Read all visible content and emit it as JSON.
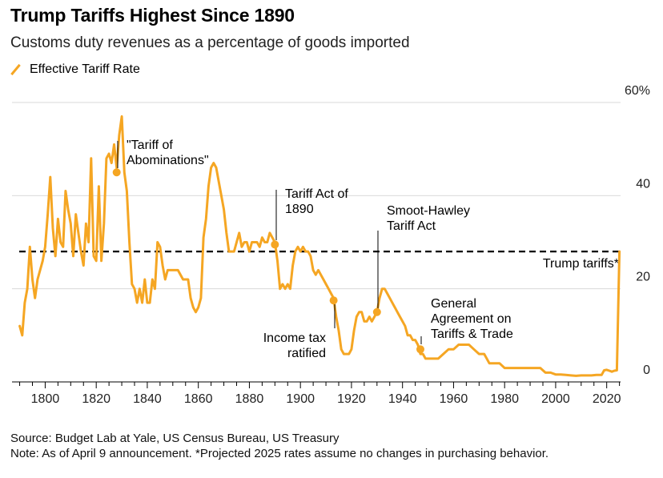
{
  "chart_data": {
    "type": "line",
    "title": "Trump Tariffs Highest Since 1890",
    "subtitle": "Customs duty revenues as a percentage of goods imported",
    "series": [
      {
        "name": "Effective Tariff Rate",
        "color": "#f5a623",
        "points": [
          [
            1790,
            12
          ],
          [
            1791,
            10
          ],
          [
            1792,
            17
          ],
          [
            1793,
            20
          ],
          [
            1794,
            29
          ],
          [
            1795,
            22
          ],
          [
            1796,
            18
          ],
          [
            1797,
            22
          ],
          [
            1798,
            24
          ],
          [
            1799,
            26
          ],
          [
            1800,
            29
          ],
          [
            1801,
            36
          ],
          [
            1802,
            44
          ],
          [
            1803,
            33
          ],
          [
            1804,
            27
          ],
          [
            1805,
            35
          ],
          [
            1806,
            30
          ],
          [
            1807,
            29
          ],
          [
            1808,
            41
          ],
          [
            1809,
            37
          ],
          [
            1810,
            34
          ],
          [
            1811,
            27
          ],
          [
            1812,
            36
          ],
          [
            1813,
            32
          ],
          [
            1814,
            28
          ],
          [
            1815,
            25
          ],
          [
            1816,
            34
          ],
          [
            1817,
            30
          ],
          [
            1818,
            48
          ],
          [
            1819,
            27
          ],
          [
            1820,
            26
          ],
          [
            1821,
            42
          ],
          [
            1822,
            26
          ],
          [
            1823,
            34
          ],
          [
            1824,
            48
          ],
          [
            1825,
            49
          ],
          [
            1826,
            47
          ],
          [
            1827,
            51
          ],
          [
            1828,
            46
          ],
          [
            1829,
            53
          ],
          [
            1830,
            57
          ],
          [
            1831,
            45
          ],
          [
            1832,
            41
          ],
          [
            1833,
            30
          ],
          [
            1834,
            21
          ],
          [
            1835,
            20
          ],
          [
            1836,
            17
          ],
          [
            1837,
            20
          ],
          [
            1838,
            17
          ],
          [
            1839,
            22
          ],
          [
            1840,
            17
          ],
          [
            1841,
            17
          ],
          [
            1842,
            22
          ],
          [
            1843,
            20
          ],
          [
            1844,
            30
          ],
          [
            1845,
            29
          ],
          [
            1846,
            25
          ],
          [
            1847,
            22
          ],
          [
            1848,
            24
          ],
          [
            1849,
            24
          ],
          [
            1850,
            24
          ],
          [
            1852,
            24
          ],
          [
            1854,
            22
          ],
          [
            1856,
            22
          ],
          [
            1857,
            18
          ],
          [
            1858,
            16
          ],
          [
            1859,
            15
          ],
          [
            1860,
            16
          ],
          [
            1861,
            18
          ],
          [
            1862,
            31
          ],
          [
            1863,
            35
          ],
          [
            1864,
            42
          ],
          [
            1865,
            46
          ],
          [
            1866,
            47
          ],
          [
            1867,
            46
          ],
          [
            1868,
            43
          ],
          [
            1869,
            40
          ],
          [
            1870,
            37
          ],
          [
            1871,
            32
          ],
          [
            1872,
            28
          ],
          [
            1873,
            28
          ],
          [
            1874,
            28
          ],
          [
            1875,
            30
          ],
          [
            1876,
            32
          ],
          [
            1877,
            29
          ],
          [
            1878,
            30
          ],
          [
            1879,
            30
          ],
          [
            1880,
            28
          ],
          [
            1881,
            30
          ],
          [
            1882,
            30
          ],
          [
            1883,
            30
          ],
          [
            1884,
            29
          ],
          [
            1885,
            31
          ],
          [
            1886,
            30
          ],
          [
            1887,
            30
          ],
          [
            1888,
            32
          ],
          [
            1889,
            31
          ],
          [
            1890,
            30
          ],
          [
            1891,
            26
          ],
          [
            1892,
            20
          ],
          [
            1893,
            21
          ],
          [
            1894,
            20
          ],
          [
            1895,
            21
          ],
          [
            1896,
            20
          ],
          [
            1897,
            25
          ],
          [
            1898,
            28
          ],
          [
            1899,
            29
          ],
          [
            1900,
            28
          ],
          [
            1901,
            29
          ],
          [
            1902,
            28
          ],
          [
            1903,
            28
          ],
          [
            1904,
            27
          ],
          [
            1905,
            24
          ],
          [
            1906,
            23
          ],
          [
            1907,
            24
          ],
          [
            1908,
            23
          ],
          [
            1909,
            22
          ],
          [
            1910,
            21
          ],
          [
            1911,
            20
          ],
          [
            1912,
            19
          ],
          [
            1913,
            18
          ],
          [
            1914,
            14
          ],
          [
            1915,
            11
          ],
          [
            1916,
            7
          ],
          [
            1917,
            6
          ],
          [
            1918,
            6
          ],
          [
            1919,
            6
          ],
          [
            1920,
            7
          ],
          [
            1921,
            11
          ],
          [
            1922,
            14
          ],
          [
            1923,
            15
          ],
          [
            1924,
            15
          ],
          [
            1925,
            13
          ],
          [
            1926,
            13
          ],
          [
            1927,
            14
          ],
          [
            1928,
            13
          ],
          [
            1929,
            14
          ],
          [
            1930,
            15
          ],
          [
            1931,
            18
          ],
          [
            1932,
            20
          ],
          [
            1933,
            20
          ],
          [
            1934,
            19
          ],
          [
            1935,
            18
          ],
          [
            1936,
            17
          ],
          [
            1937,
            16
          ],
          [
            1938,
            15
          ],
          [
            1939,
            14
          ],
          [
            1940,
            13
          ],
          [
            1941,
            12
          ],
          [
            1942,
            10
          ],
          [
            1943,
            10
          ],
          [
            1944,
            9
          ],
          [
            1945,
            9
          ],
          [
            1946,
            8
          ],
          [
            1947,
            6
          ],
          [
            1948,
            6
          ],
          [
            1949,
            5
          ],
          [
            1950,
            5
          ],
          [
            1952,
            5
          ],
          [
            1954,
            5
          ],
          [
            1956,
            6
          ],
          [
            1958,
            7
          ],
          [
            1960,
            7
          ],
          [
            1962,
            8
          ],
          [
            1964,
            8
          ],
          [
            1966,
            8
          ],
          [
            1968,
            7
          ],
          [
            1970,
            6
          ],
          [
            1972,
            6
          ],
          [
            1974,
            4
          ],
          [
            1976,
            4
          ],
          [
            1978,
            4
          ],
          [
            1980,
            3
          ],
          [
            1982,
            3
          ],
          [
            1984,
            3
          ],
          [
            1986,
            3
          ],
          [
            1988,
            3
          ],
          [
            1990,
            3
          ],
          [
            1992,
            3
          ],
          [
            1994,
            3
          ],
          [
            1996,
            2
          ],
          [
            1998,
            2
          ],
          [
            2000,
            1.6
          ],
          [
            2002,
            1.6
          ],
          [
            2004,
            1.5
          ],
          [
            2006,
            1.4
          ],
          [
            2008,
            1.3
          ],
          [
            2010,
            1.4
          ],
          [
            2012,
            1.4
          ],
          [
            2014,
            1.4
          ],
          [
            2016,
            1.5
          ],
          [
            2018,
            1.5
          ],
          [
            2019,
            2.5
          ],
          [
            2020,
            2.6
          ],
          [
            2021,
            2.4
          ],
          [
            2022,
            2.2
          ],
          [
            2023,
            2.4
          ],
          [
            2024,
            2.5
          ],
          [
            2025,
            28
          ]
        ]
      }
    ],
    "reference_line": {
      "label": "Trump tariffs*",
      "value": 28,
      "style": "dashed"
    },
    "annotations": [
      {
        "lines": [
          "\"Tariff of",
          "Abominations\""
        ],
        "x": 1828,
        "y": 45
      },
      {
        "lines": [
          "Tariff Act of",
          "1890"
        ],
        "x": 1890,
        "y": 29.5
      },
      {
        "lines": [
          "Income tax",
          "ratified"
        ],
        "x": 1913,
        "y": 17.5
      },
      {
        "lines": [
          "Smoot-Hawley",
          "Tariff Act"
        ],
        "x": 1930,
        "y": 15
      },
      {
        "lines": [
          "General",
          "Agreement on",
          "Tariffs & Trade"
        ],
        "x": 1947,
        "y": 7
      }
    ],
    "x_ticks": [
      1800,
      1820,
      1840,
      1860,
      1880,
      1900,
      1920,
      1940,
      1960,
      1980,
      2000,
      2020
    ],
    "y_ticks": [
      {
        "value": 0,
        "label": "0"
      },
      {
        "value": 20,
        "label": "20"
      },
      {
        "value": 40,
        "label": "40"
      },
      {
        "value": 60,
        "label": "60%"
      }
    ],
    "xlim": [
      1787,
      2027
    ],
    "ylim": [
      0,
      60
    ],
    "grid": "horizontal",
    "y_axis_position": "right"
  },
  "footer": {
    "source": "Source: Budget Lab at Yale, US Census Bureau, US Treasury",
    "note": "Note: As of April 9 announcement. *Projected 2025 rates assume no changes in purchasing behavior."
  }
}
